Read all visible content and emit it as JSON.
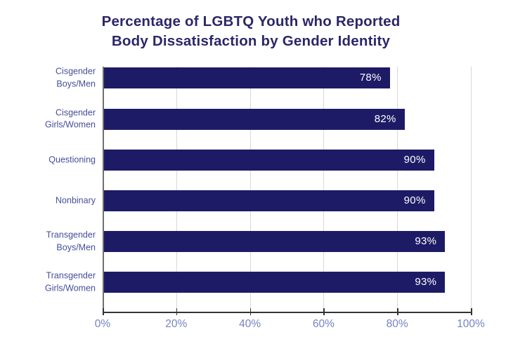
{
  "chart_data": {
    "type": "bar",
    "orientation": "horizontal",
    "title": "Percentage of LGBTQ Youth who Reported Body Dissatisfaction by Gender Identity",
    "categories": [
      "Cisgender Boys/Men",
      "Cisgender Girls/Women",
      "Questioning",
      "Nonbinary",
      "Transgender Boys/Men",
      "Transgender Girls/Women"
    ],
    "values": [
      78,
      82,
      90,
      90,
      93,
      93
    ],
    "value_labels": [
      "78%",
      "82%",
      "90%",
      "90%",
      "93%",
      "93%"
    ],
    "xlabel": "",
    "ylabel": "",
    "xlim": [
      0,
      100
    ],
    "x_tick_values": [
      0,
      20,
      40,
      60,
      80,
      100
    ],
    "x_tick_labels": [
      "0%",
      "20%",
      "40%",
      "60%",
      "80%",
      "100%"
    ],
    "grid": "vertical gridlines at each 20% step",
    "legend_position": "none",
    "colors": {
      "bar": "#1e1b66",
      "title": "#2b2768",
      "category_label": "#474e99",
      "x_tick_label": "#7682c4",
      "value_label": "#ffffff",
      "gridline": "#d8d8d8",
      "x_axis_line": "#333333",
      "y_axis_line": "#707070",
      "background": "#ffffff"
    }
  }
}
